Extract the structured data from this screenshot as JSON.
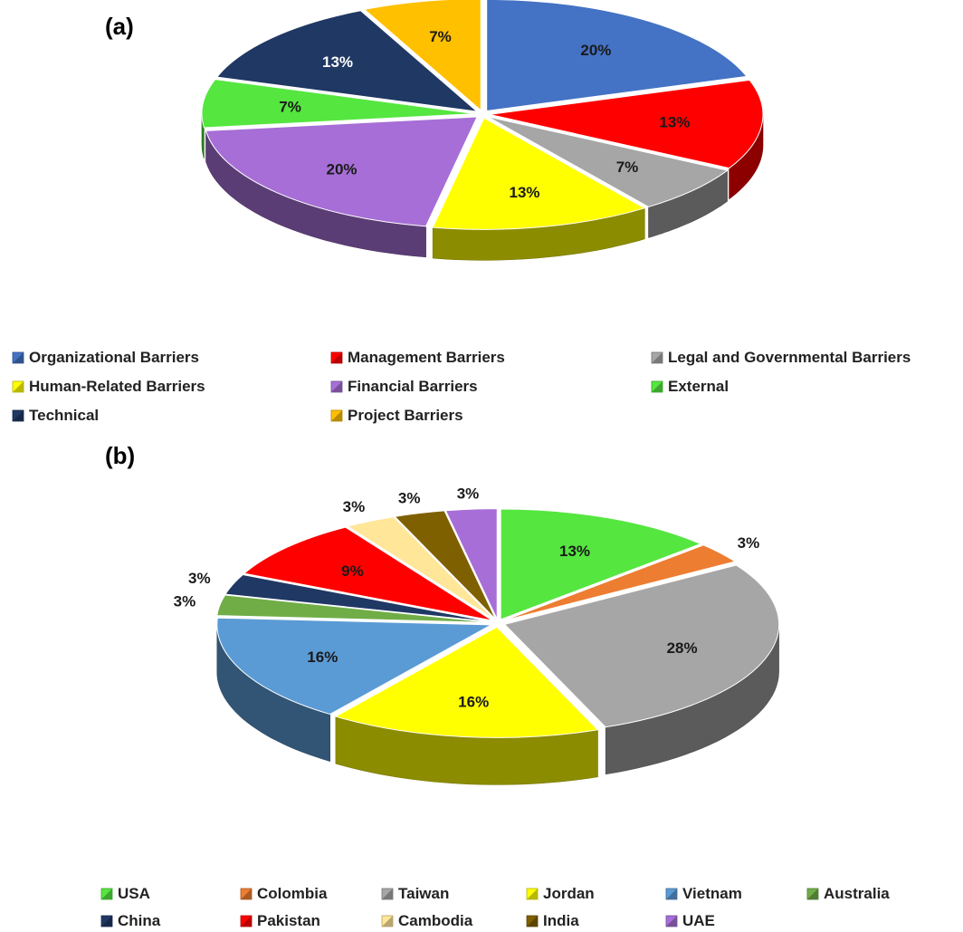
{
  "chart_data": [
    {
      "type": "pie",
      "panel_label": "(a)",
      "slices": [
        {
          "label": "Organizational Barriers",
          "value": 20,
          "display": "20%",
          "color": "#4472C4"
        },
        {
          "label": "Management Barriers",
          "value": 13,
          "display": "13%",
          "color": "#FF0000"
        },
        {
          "label": "Legal and Governmental Barriers",
          "value": 7,
          "display": "7%",
          "color": "#A6A6A6"
        },
        {
          "label": "Human-Related Barriers",
          "value": 13,
          "display": "13%",
          "color": "#FFFF00"
        },
        {
          "label": "Financial Barriers",
          "value": 20,
          "display": "20%",
          "color": "#A66ED6"
        },
        {
          "label": "External",
          "value": 7,
          "display": "7%",
          "color": "#55E640"
        },
        {
          "label": "Technical",
          "value": 13,
          "display": "13%",
          "color": "#1F3864"
        },
        {
          "label": "Project Barriers",
          "value": 7,
          "display": "7%",
          "color": "#FFC000"
        }
      ],
      "legend": [
        "Organizational Barriers",
        "Management Barriers",
        "Legal and Governmental Barriers",
        "Human-Related Barriers",
        "Financial Barriers",
        "External",
        "Technical",
        "Project Barriers"
      ]
    },
    {
      "type": "pie",
      "panel_label": "(b)",
      "slices": [
        {
          "label": "USA",
          "value": 13,
          "display": "13%",
          "color": "#55E640"
        },
        {
          "label": "Colombia",
          "value": 3,
          "display": "3%",
          "color": "#ED7D31"
        },
        {
          "label": "Taiwan",
          "value": 28,
          "display": "28%",
          "color": "#A6A6A6"
        },
        {
          "label": "Jordan",
          "value": 16,
          "display": "16%",
          "color": "#FFFF00"
        },
        {
          "label": "Vietnam",
          "value": 16,
          "display": "16%",
          "color": "#5B9BD5"
        },
        {
          "label": "Australia",
          "value": 3,
          "display": "3%",
          "color": "#70AD47"
        },
        {
          "label": "China",
          "value": 3,
          "display": "3%",
          "color": "#1F3864"
        },
        {
          "label": "Pakistan",
          "value": 9,
          "display": "9%",
          "color": "#FF0000"
        },
        {
          "label": "Cambodia",
          "value": 3,
          "display": "3%",
          "color": "#FFE699"
        },
        {
          "label": "India",
          "value": 3,
          "display": "3%",
          "color": "#7F6000"
        },
        {
          "label": "UAE",
          "value": 3,
          "display": "3%",
          "color": "#A66ED6"
        }
      ],
      "legend": [
        "USA",
        "Colombia",
        "Taiwan",
        "Jordan",
        "Vietnam",
        "Australia",
        "China",
        "Pakistan",
        "Cambodia",
        "India",
        "UAE"
      ]
    }
  ]
}
